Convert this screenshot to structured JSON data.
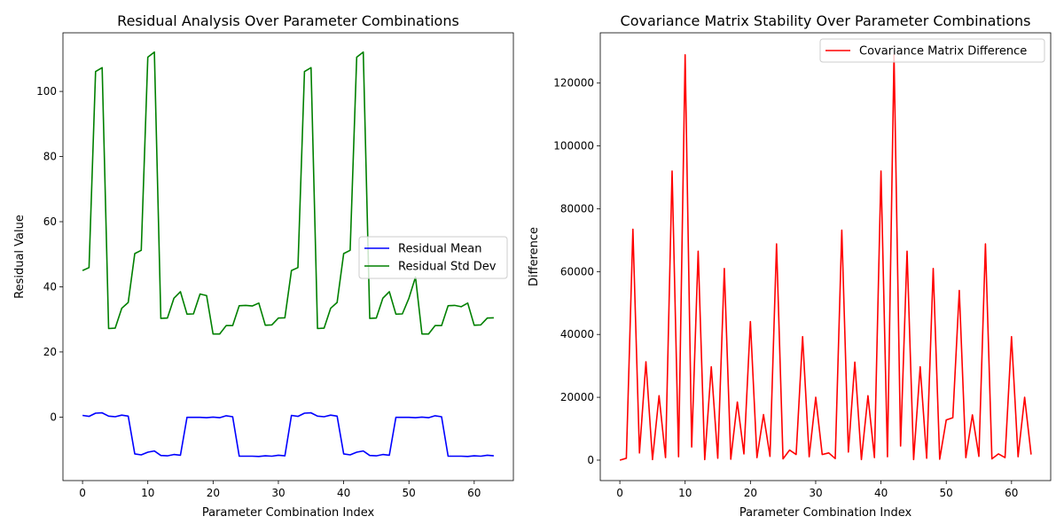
{
  "chart_data": [
    {
      "type": "line",
      "title": "Residual Analysis Over Parameter Combinations",
      "xlabel": "Parameter Combination Index",
      "ylabel": "Residual Value",
      "xlim": [
        -3,
        66
      ],
      "ylim": [
        -19.5,
        118
      ],
      "xticks": [
        0,
        10,
        20,
        30,
        40,
        50,
        60
      ],
      "yticks": [
        0,
        20,
        40,
        60,
        80,
        100
      ],
      "legend_position": "center-right",
      "grid": false,
      "x": [
        0,
        1,
        2,
        3,
        4,
        5,
        6,
        7,
        8,
        9,
        10,
        11,
        12,
        13,
        14,
        15,
        16,
        17,
        18,
        19,
        20,
        21,
        22,
        23,
        24,
        25,
        26,
        27,
        28,
        29,
        30,
        31,
        32,
        33,
        34,
        35,
        36,
        37,
        38,
        39,
        40,
        41,
        42,
        43,
        44,
        45,
        46,
        47,
        48,
        49,
        50,
        51,
        52,
        53,
        54,
        55,
        56,
        57,
        58,
        59,
        60,
        61,
        62,
        63
      ],
      "series": [
        {
          "name": "Residual Mean",
          "color": "#0000ff",
          "values": [
            0.5,
            0.2,
            1.2,
            1.3,
            0.3,
            0.1,
            0.6,
            0.3,
            -11.3,
            -11.6,
            -10.8,
            -10.4,
            -11.8,
            -11.9,
            -11.5,
            -11.7,
            -0.1,
            -0.1,
            -0.1,
            -0.2,
            0.0,
            -0.2,
            0.4,
            0.1,
            -12.0,
            -12.0,
            -12.0,
            -12.1,
            -11.9,
            -12.0,
            -11.7,
            -11.9,
            0.5,
            0.2,
            1.2,
            1.3,
            0.3,
            0.1,
            0.6,
            0.3,
            -11.3,
            -11.6,
            -10.8,
            -10.4,
            -11.8,
            -11.9,
            -11.5,
            -11.7,
            -0.1,
            -0.1,
            -0.1,
            -0.2,
            0.0,
            -0.2,
            0.4,
            0.1,
            -12.0,
            -12.0,
            -12.0,
            -12.1,
            -11.9,
            -12.0,
            -11.7,
            -11.9
          ]
        },
        {
          "name": "Residual Std Dev",
          "color": "#008000",
          "values": [
            45.0,
            45.9,
            106.1,
            107.3,
            27.2,
            27.3,
            33.4,
            35.2,
            50.2,
            51.2,
            110.5,
            112.1,
            30.3,
            30.4,
            36.5,
            38.5,
            31.6,
            31.7,
            37.8,
            37.3,
            25.5,
            25.5,
            28.1,
            28.1,
            34.2,
            34.3,
            34.1,
            35.0,
            28.2,
            28.3,
            30.4,
            30.5,
            45.0,
            45.9,
            106.1,
            107.3,
            27.2,
            27.3,
            33.4,
            35.2,
            50.2,
            51.2,
            110.5,
            112.1,
            30.3,
            30.4,
            36.5,
            38.5,
            31.6,
            31.7,
            36.5,
            43.0,
            25.5,
            25.5,
            28.1,
            28.1,
            34.2,
            34.3,
            33.9,
            35.0,
            28.2,
            28.3,
            30.4,
            30.5
          ]
        }
      ]
    },
    {
      "type": "line",
      "title": "Covariance Matrix Stability Over Parameter Combinations",
      "xlabel": "Parameter Combination Index",
      "ylabel": "Difference",
      "xlim": [
        -3,
        66
      ],
      "ylim": [
        -6500,
        136000
      ],
      "xticks": [
        0,
        10,
        20,
        30,
        40,
        50,
        60
      ],
      "yticks": [
        0,
        20000,
        40000,
        60000,
        80000,
        100000,
        120000
      ],
      "legend_position": "top-right",
      "grid": false,
      "x": [
        0,
        1,
        2,
        3,
        4,
        5,
        6,
        7,
        8,
        9,
        10,
        11,
        12,
        13,
        14,
        15,
        16,
        17,
        18,
        19,
        20,
        21,
        22,
        23,
        24,
        25,
        26,
        27,
        28,
        29,
        30,
        31,
        32,
        33,
        34,
        35,
        36,
        37,
        38,
        39,
        40,
        41,
        42,
        43,
        44,
        45,
        46,
        47,
        48,
        49,
        50,
        51,
        52,
        53,
        54,
        55,
        56,
        57,
        58,
        59,
        60,
        61,
        62,
        63
      ],
      "series": [
        {
          "name": "Covariance Matrix Difference",
          "color": "#ff0000",
          "values": [
            0,
            600,
            73500,
            2300,
            31300,
            200,
            20500,
            800,
            92000,
            1100,
            129000,
            4200,
            66500,
            200,
            29700,
            600,
            61000,
            300,
            18500,
            2000,
            44100,
            800,
            14500,
            1200,
            68800,
            400,
            3200,
            1800,
            39300,
            1100,
            20000,
            1800,
            2300,
            500,
            73200,
            2600,
            31200,
            200,
            20500,
            800,
            92000,
            1100,
            129000,
            4500,
            66500,
            200,
            29700,
            600,
            61000,
            300,
            12800,
            13500,
            54000,
            800,
            14400,
            1200,
            68800,
            400,
            2000,
            800,
            39300,
            1100,
            20000,
            1800
          ]
        }
      ]
    }
  ]
}
